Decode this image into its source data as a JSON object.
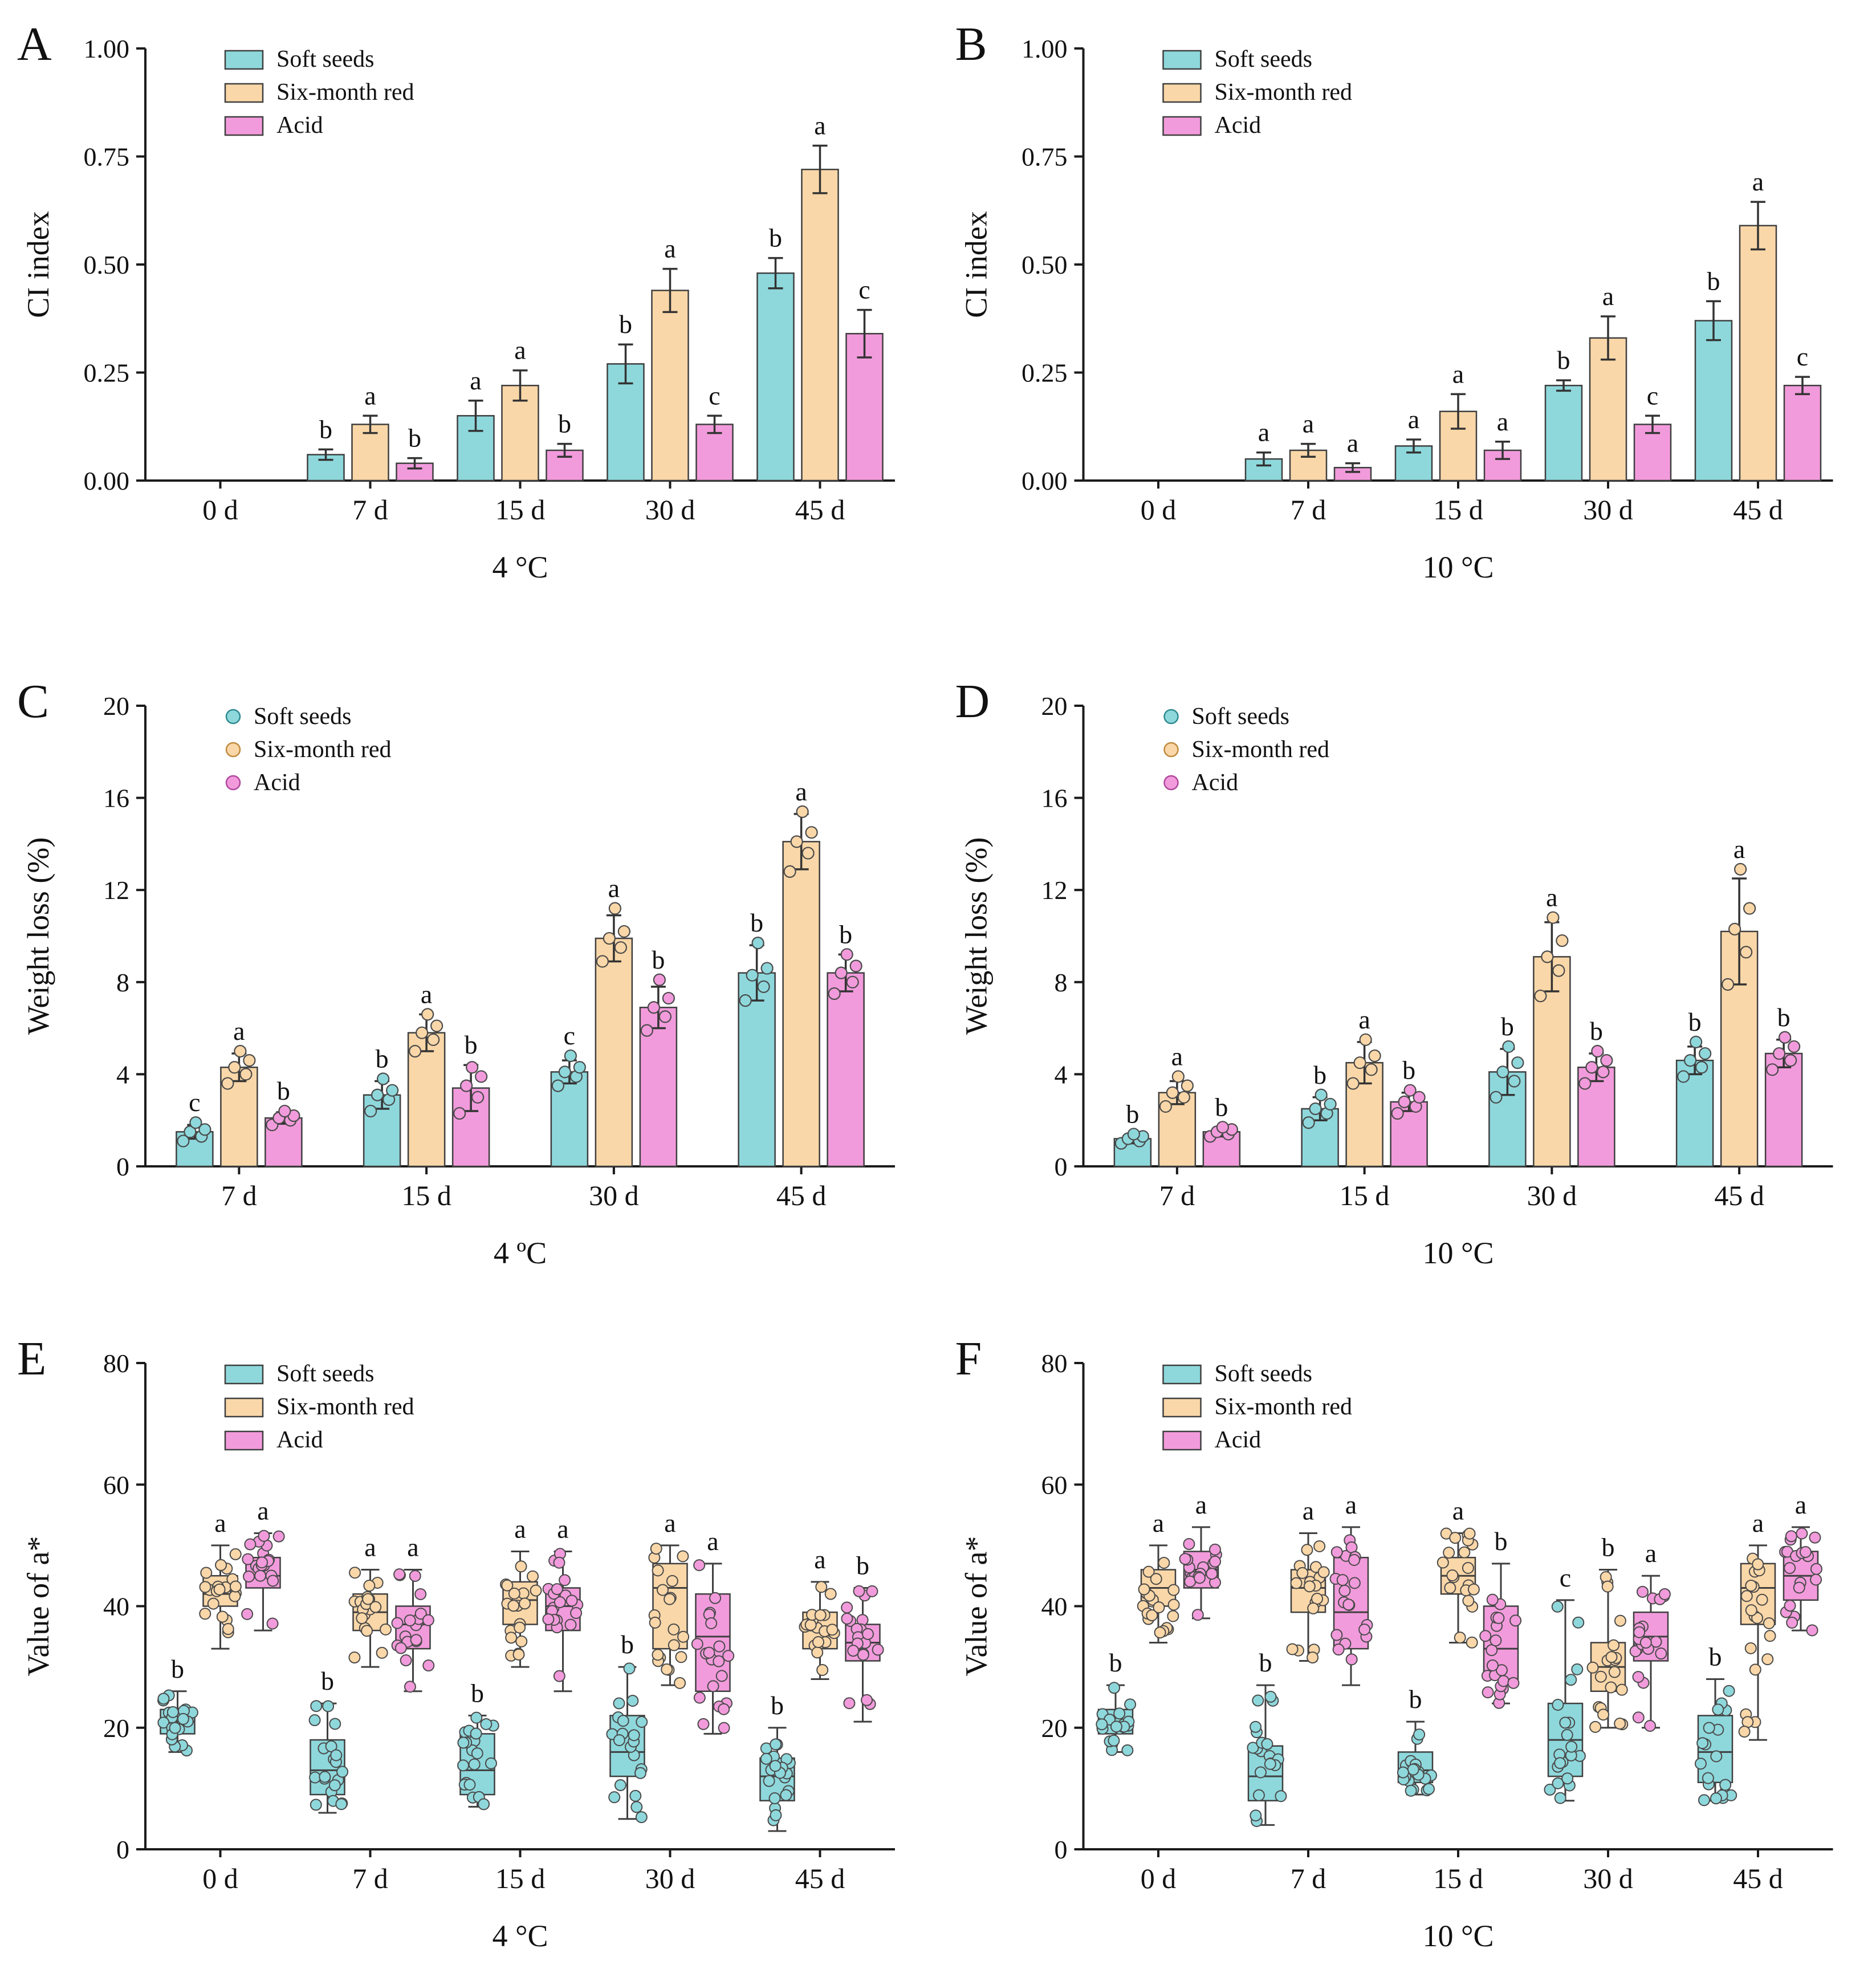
{
  "figure": {
    "background": "#ffffff",
    "axis_color": "#1a1a1a",
    "panel_labels": [
      "A",
      "B",
      "C",
      "D",
      "E",
      "F"
    ],
    "legend_entries": [
      "Soft seeds",
      "Six-month red",
      "Acid"
    ],
    "colors": {
      "soft_seeds": "#8ED8DC",
      "six_month_red": "#FAD7A8",
      "acid": "#F29BDC"
    }
  },
  "chart_data": [
    {
      "panel": "A",
      "type": "bar",
      "title": "",
      "xlabel": "4 °C",
      "ylabel": "CI index",
      "categories": [
        "0 d",
        "7 d",
        "15 d",
        "30 d",
        "45 d"
      ],
      "ylim": [
        0,
        1.0
      ],
      "yticks": [
        0,
        0.25,
        0.5,
        0.75,
        1.0
      ],
      "ytick_format": "2dp",
      "legend_marker": "rect",
      "legend_position": "top-left",
      "grid": false,
      "series": [
        {
          "name": "Soft seeds",
          "color": "#8ED8DC",
          "edge": "#2F8A91",
          "values": [
            0,
            0.06,
            0.15,
            0.27,
            0.48
          ],
          "errors": [
            0,
            0.012,
            0.035,
            0.045,
            0.035
          ],
          "letters": [
            "",
            "b",
            "a",
            "b",
            "b"
          ]
        },
        {
          "name": "Six-month red",
          "color": "#FAD7A8",
          "edge": "#C08A3E",
          "values": [
            0,
            0.13,
            0.22,
            0.44,
            0.72
          ],
          "errors": [
            0,
            0.02,
            0.035,
            0.05,
            0.055
          ],
          "letters": [
            "",
            "a",
            "a",
            "a",
            "a"
          ]
        },
        {
          "name": "Acid",
          "color": "#F29BDC",
          "edge": "#B1479E",
          "values": [
            0,
            0.04,
            0.07,
            0.13,
            0.34
          ],
          "errors": [
            0,
            0.012,
            0.015,
            0.02,
            0.055
          ],
          "letters": [
            "",
            "b",
            "b",
            "c",
            "c"
          ]
        }
      ]
    },
    {
      "panel": "B",
      "type": "bar",
      "title": "",
      "xlabel": "10 °C",
      "ylabel": "CI index",
      "categories": [
        "0 d",
        "7 d",
        "15 d",
        "30 d",
        "45 d"
      ],
      "ylim": [
        0,
        1.0
      ],
      "yticks": [
        0,
        0.25,
        0.5,
        0.75,
        1.0
      ],
      "ytick_format": "2dp",
      "legend_marker": "rect",
      "legend_position": "top-left",
      "grid": false,
      "series": [
        {
          "name": "Soft seeds",
          "color": "#8ED8DC",
          "edge": "#2F8A91",
          "values": [
            0,
            0.05,
            0.08,
            0.22,
            0.37
          ],
          "errors": [
            0,
            0.015,
            0.015,
            0.012,
            0.045
          ],
          "letters": [
            "",
            "a",
            "a",
            "b",
            "b"
          ]
        },
        {
          "name": "Six-month red",
          "color": "#FAD7A8",
          "edge": "#C08A3E",
          "values": [
            0,
            0.07,
            0.16,
            0.33,
            0.59
          ],
          "errors": [
            0,
            0.015,
            0.04,
            0.05,
            0.055
          ],
          "letters": [
            "",
            "a",
            "a",
            "a",
            "a"
          ]
        },
        {
          "name": "Acid",
          "color": "#F29BDC",
          "edge": "#B1479E",
          "values": [
            0,
            0.03,
            0.07,
            0.13,
            0.22
          ],
          "errors": [
            0,
            0.01,
            0.02,
            0.02,
            0.02
          ],
          "letters": [
            "",
            "a",
            "a",
            "c",
            "c"
          ]
        }
      ]
    },
    {
      "panel": "C",
      "type": "bar-scatter",
      "title": "",
      "xlabel": "4 ºC",
      "ylabel": "Weight loss (%)",
      "categories": [
        "7 d",
        "15 d",
        "30 d",
        "45 d"
      ],
      "ylim": [
        0,
        20
      ],
      "yticks": [
        0,
        4,
        8,
        12,
        16,
        20
      ],
      "ytick_format": "int",
      "legend_marker": "circle",
      "legend_position": "top-left",
      "grid": false,
      "series": [
        {
          "name": "Soft seeds",
          "color": "#8ED8DC",
          "edge": "#2F8A91",
          "values": [
            1.5,
            3.1,
            4.1,
            8.4
          ],
          "errors": [
            0.3,
            0.6,
            0.5,
            1.2
          ],
          "letters": [
            "c",
            "b",
            "c",
            "b"
          ],
          "points": [
            [
              1.1,
              1.3,
              1.5,
              1.6,
              1.9
            ],
            [
              2.4,
              2.9,
              3.1,
              3.3,
              3.8
            ],
            [
              3.5,
              3.9,
              4.1,
              4.3,
              4.8
            ],
            [
              7.2,
              7.8,
              8.3,
              8.6,
              9.7
            ]
          ]
        },
        {
          "name": "Six-month red",
          "color": "#FAD7A8",
          "edge": "#C08A3E",
          "values": [
            4.3,
            5.8,
            9.9,
            14.1
          ],
          "errors": [
            0.6,
            0.8,
            1.0,
            1.2
          ],
          "letters": [
            "a",
            "a",
            "a",
            "a"
          ],
          "points": [
            [
              3.6,
              4.0,
              4.3,
              4.6,
              5.0
            ],
            [
              5.0,
              5.5,
              5.8,
              6.1,
              6.6
            ],
            [
              8.9,
              9.5,
              9.9,
              10.2,
              11.2
            ],
            [
              12.8,
              13.6,
              14.1,
              14.5,
              15.4
            ]
          ]
        },
        {
          "name": "Acid",
          "color": "#F29BDC",
          "edge": "#B1479E",
          "values": [
            2.1,
            3.4,
            6.9,
            8.4
          ],
          "errors": [
            0.25,
            1.0,
            0.9,
            0.8
          ],
          "letters": [
            "b",
            "b",
            "b",
            "b"
          ],
          "points": [
            [
              1.8,
              2.0,
              2.1,
              2.2,
              2.4
            ],
            [
              2.3,
              3.0,
              3.5,
              3.9,
              4.3
            ],
            [
              5.9,
              6.5,
              6.9,
              7.3,
              8.1
            ],
            [
              7.5,
              8.0,
              8.4,
              8.7,
              9.2
            ]
          ]
        }
      ]
    },
    {
      "panel": "D",
      "type": "bar-scatter",
      "title": "",
      "xlabel": "10 °C",
      "ylabel": "Weight loss (%)",
      "categories": [
        "7 d",
        "15 d",
        "30 d",
        "45 d"
      ],
      "ylim": [
        0,
        20
      ],
      "yticks": [
        0,
        4,
        8,
        12,
        16,
        20
      ],
      "ytick_format": "int",
      "legend_marker": "circle",
      "legend_position": "top-left",
      "grid": false,
      "series": [
        {
          "name": "Soft seeds",
          "color": "#8ED8DC",
          "edge": "#2F8A91",
          "values": [
            1.2,
            2.5,
            4.1,
            4.6
          ],
          "errors": [
            0.2,
            0.5,
            1.0,
            0.6
          ],
          "letters": [
            "b",
            "b",
            "b",
            "b"
          ],
          "points": [
            [
              1.0,
              1.1,
              1.2,
              1.3,
              1.4
            ],
            [
              1.9,
              2.3,
              2.5,
              2.7,
              3.1
            ],
            [
              3.0,
              3.7,
              4.1,
              4.5,
              5.2
            ],
            [
              3.9,
              4.3,
              4.6,
              4.9,
              5.4
            ]
          ]
        },
        {
          "name": "Six-month red",
          "color": "#FAD7A8",
          "edge": "#C08A3E",
          "values": [
            3.2,
            4.5,
            9.1,
            10.2
          ],
          "errors": [
            0.5,
            0.9,
            1.5,
            2.3
          ],
          "letters": [
            "a",
            "a",
            "a",
            "a"
          ],
          "points": [
            [
              2.6,
              3.0,
              3.2,
              3.5,
              3.9
            ],
            [
              3.6,
              4.2,
              4.5,
              4.8,
              5.5
            ],
            [
              7.4,
              8.5,
              9.1,
              9.8,
              10.8
            ],
            [
              7.9,
              9.3,
              10.3,
              11.2,
              12.9
            ]
          ]
        },
        {
          "name": "Acid",
          "color": "#F29BDC",
          "edge": "#B1479E",
          "values": [
            1.5,
            2.8,
            4.3,
            4.9
          ],
          "errors": [
            0.2,
            0.4,
            0.6,
            0.6
          ],
          "letters": [
            "b",
            "b",
            "b",
            "b"
          ],
          "points": [
            [
              1.3,
              1.4,
              1.5,
              1.6,
              1.7
            ],
            [
              2.3,
              2.6,
              2.8,
              3.0,
              3.3
            ],
            [
              3.6,
              4.1,
              4.3,
              4.6,
              5.0
            ],
            [
              4.2,
              4.6,
              4.9,
              5.2,
              5.6
            ]
          ]
        }
      ]
    },
    {
      "panel": "E",
      "type": "box",
      "title": "",
      "xlabel": "4 °C",
      "ylabel": "Value of a*",
      "categories": [
        "0 d",
        "7 d",
        "15 d",
        "30 d",
        "45 d"
      ],
      "ylim": [
        0,
        80
      ],
      "yticks": [
        0,
        20,
        40,
        60,
        80
      ],
      "ytick_format": "int",
      "legend_marker": "rect",
      "legend_position": "top-left",
      "grid": false,
      "points_per_box": 20,
      "series": [
        {
          "name": "Soft seeds",
          "color": "#8ED8DC",
          "edge": "#2F8A91",
          "letters": [
            "b",
            "b",
            "b",
            "b",
            "b"
          ],
          "boxes": [
            {
              "min": 16,
              "q1": 19,
              "med": 21,
              "q3": 23,
              "max": 26
            },
            {
              "min": 6,
              "q1": 9,
              "med": 13,
              "q3": 18,
              "max": 24
            },
            {
              "min": 7,
              "q1": 9,
              "med": 13,
              "q3": 19,
              "max": 22
            },
            {
              "min": 5,
              "q1": 12,
              "med": 16,
              "q3": 22,
              "max": 30
            },
            {
              "min": 3,
              "q1": 8,
              "med": 12,
              "q3": 15,
              "max": 20
            }
          ]
        },
        {
          "name": "Six-month red",
          "color": "#FAD7A8",
          "edge": "#C08A3E",
          "letters": [
            "a",
            "a",
            "a",
            "a",
            "a"
          ],
          "boxes": [
            {
              "min": 33,
              "q1": 40,
              "med": 42,
              "q3": 45,
              "max": 50
            },
            {
              "min": 30,
              "q1": 36,
              "med": 39,
              "q3": 42,
              "max": 46
            },
            {
              "min": 30,
              "q1": 37,
              "med": 41,
              "q3": 44,
              "max": 49
            },
            {
              "min": 27,
              "q1": 33,
              "med": 43,
              "q3": 47,
              "max": 50
            },
            {
              "min": 28,
              "q1": 33,
              "med": 36,
              "q3": 39,
              "max": 44
            }
          ]
        },
        {
          "name": "Acid",
          "color": "#F29BDC",
          "edge": "#B1479E",
          "letters": [
            "a",
            "a",
            "a",
            "a",
            "b"
          ],
          "boxes": [
            {
              "min": 36,
              "q1": 43,
              "med": 45,
              "q3": 48,
              "max": 52
            },
            {
              "min": 26,
              "q1": 33,
              "med": 37,
              "q3": 40,
              "max": 46
            },
            {
              "min": 26,
              "q1": 36,
              "med": 40,
              "q3": 43,
              "max": 49
            },
            {
              "min": 19,
              "q1": 26,
              "med": 35,
              "q3": 42,
              "max": 47
            },
            {
              "min": 21,
              "q1": 31,
              "med": 34,
              "q3": 37,
              "max": 43
            }
          ]
        }
      ]
    },
    {
      "panel": "F",
      "type": "box",
      "title": "",
      "xlabel": "10 °C",
      "ylabel": "Value of a*",
      "categories": [
        "0 d",
        "7 d",
        "15 d",
        "30 d",
        "45 d"
      ],
      "ylim": [
        0,
        80
      ],
      "yticks": [
        0,
        20,
        40,
        60,
        80
      ],
      "ytick_format": "int",
      "legend_marker": "rect",
      "legend_position": "top-left",
      "grid": false,
      "points_per_box": 20,
      "series": [
        {
          "name": "Soft seeds",
          "color": "#8ED8DC",
          "edge": "#2F8A91",
          "letters": [
            "b",
            "b",
            "b",
            "c",
            "b"
          ],
          "boxes": [
            {
              "min": 16,
              "q1": 19,
              "med": 21,
              "q3": 23,
              "max": 27
            },
            {
              "min": 4,
              "q1": 8,
              "med": 12,
              "q3": 17,
              "max": 27
            },
            {
              "min": 9,
              "q1": 11,
              "med": 13,
              "q3": 16,
              "max": 21
            },
            {
              "min": 8,
              "q1": 12,
              "med": 18,
              "q3": 24,
              "max": 41
            },
            {
              "min": 8,
              "q1": 11,
              "med": 16,
              "q3": 22,
              "max": 28
            }
          ]
        },
        {
          "name": "Six-month red",
          "color": "#FAD7A8",
          "edge": "#C08A3E",
          "letters": [
            "a",
            "a",
            "a",
            "b",
            "a"
          ],
          "boxes": [
            {
              "min": 34,
              "q1": 40,
              "med": 43,
              "q3": 46,
              "max": 50
            },
            {
              "min": 31,
              "q1": 39,
              "med": 43,
              "q3": 46,
              "max": 52
            },
            {
              "min": 34,
              "q1": 42,
              "med": 45,
              "q3": 48,
              "max": 52
            },
            {
              "min": 20,
              "q1": 26,
              "med": 30,
              "q3": 34,
              "max": 46
            },
            {
              "min": 18,
              "q1": 37,
              "med": 43,
              "q3": 47,
              "max": 50
            }
          ]
        },
        {
          "name": "Acid",
          "color": "#F29BDC",
          "edge": "#B1479E",
          "letters": [
            "a",
            "a",
            "b",
            "a",
            "a"
          ],
          "boxes": [
            {
              "min": 38,
              "q1": 43,
              "med": 46,
              "q3": 49,
              "max": 53
            },
            {
              "min": 27,
              "q1": 33,
              "med": 39,
              "q3": 48,
              "max": 53
            },
            {
              "min": 24,
              "q1": 28,
              "med": 33,
              "q3": 40,
              "max": 47
            },
            {
              "min": 20,
              "q1": 31,
              "med": 35,
              "q3": 39,
              "max": 45
            },
            {
              "min": 36,
              "q1": 41,
              "med": 45,
              "q3": 49,
              "max": 53
            }
          ]
        }
      ]
    }
  ]
}
